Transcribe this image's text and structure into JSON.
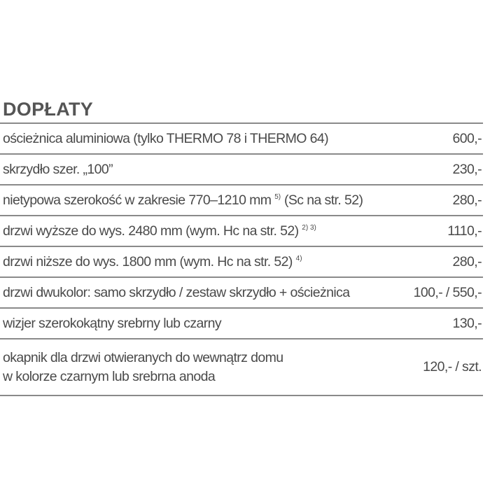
{
  "title": "DOPŁATY",
  "rows": [
    {
      "label": "ościeżnica aluminiowa (tylko THERMO 78 i THERMO 64)",
      "sup": "",
      "after": "",
      "price": "600,-"
    },
    {
      "label": "skrzydło szer. „100”",
      "sup": "",
      "after": "",
      "price": "230,-"
    },
    {
      "label": "nietypowa szerokość w zakresie 770–1210 mm",
      "sup": "5)",
      "after": " (Sc na str. 52)",
      "price": "280,-"
    },
    {
      "label": "drzwi wyższe do wys. 2480 mm (wym. Hc na str. 52)",
      "sup": "2) 3)",
      "after": "",
      "price": "1110,-"
    },
    {
      "label": "drzwi niższe do wys. 1800 mm (wym. Hc na str. 52)",
      "sup": "4)",
      "after": "",
      "price": "280,-"
    },
    {
      "label": "drzwi dwukolor: samo skrzydło / zestaw skrzydło + ościeżnica",
      "sup": "",
      "after": "",
      "price": "100,- / 550,-"
    },
    {
      "label": "wizjer szerokokątny srebrny lub czarny",
      "sup": "",
      "after": "",
      "price": "130,-"
    },
    {
      "label": "okapnik dla drzwi otwieranych do wewnątrz domu",
      "label2": "w kolorze czarnym lub srebrna anoda",
      "price": "120,- / szt."
    }
  ]
}
